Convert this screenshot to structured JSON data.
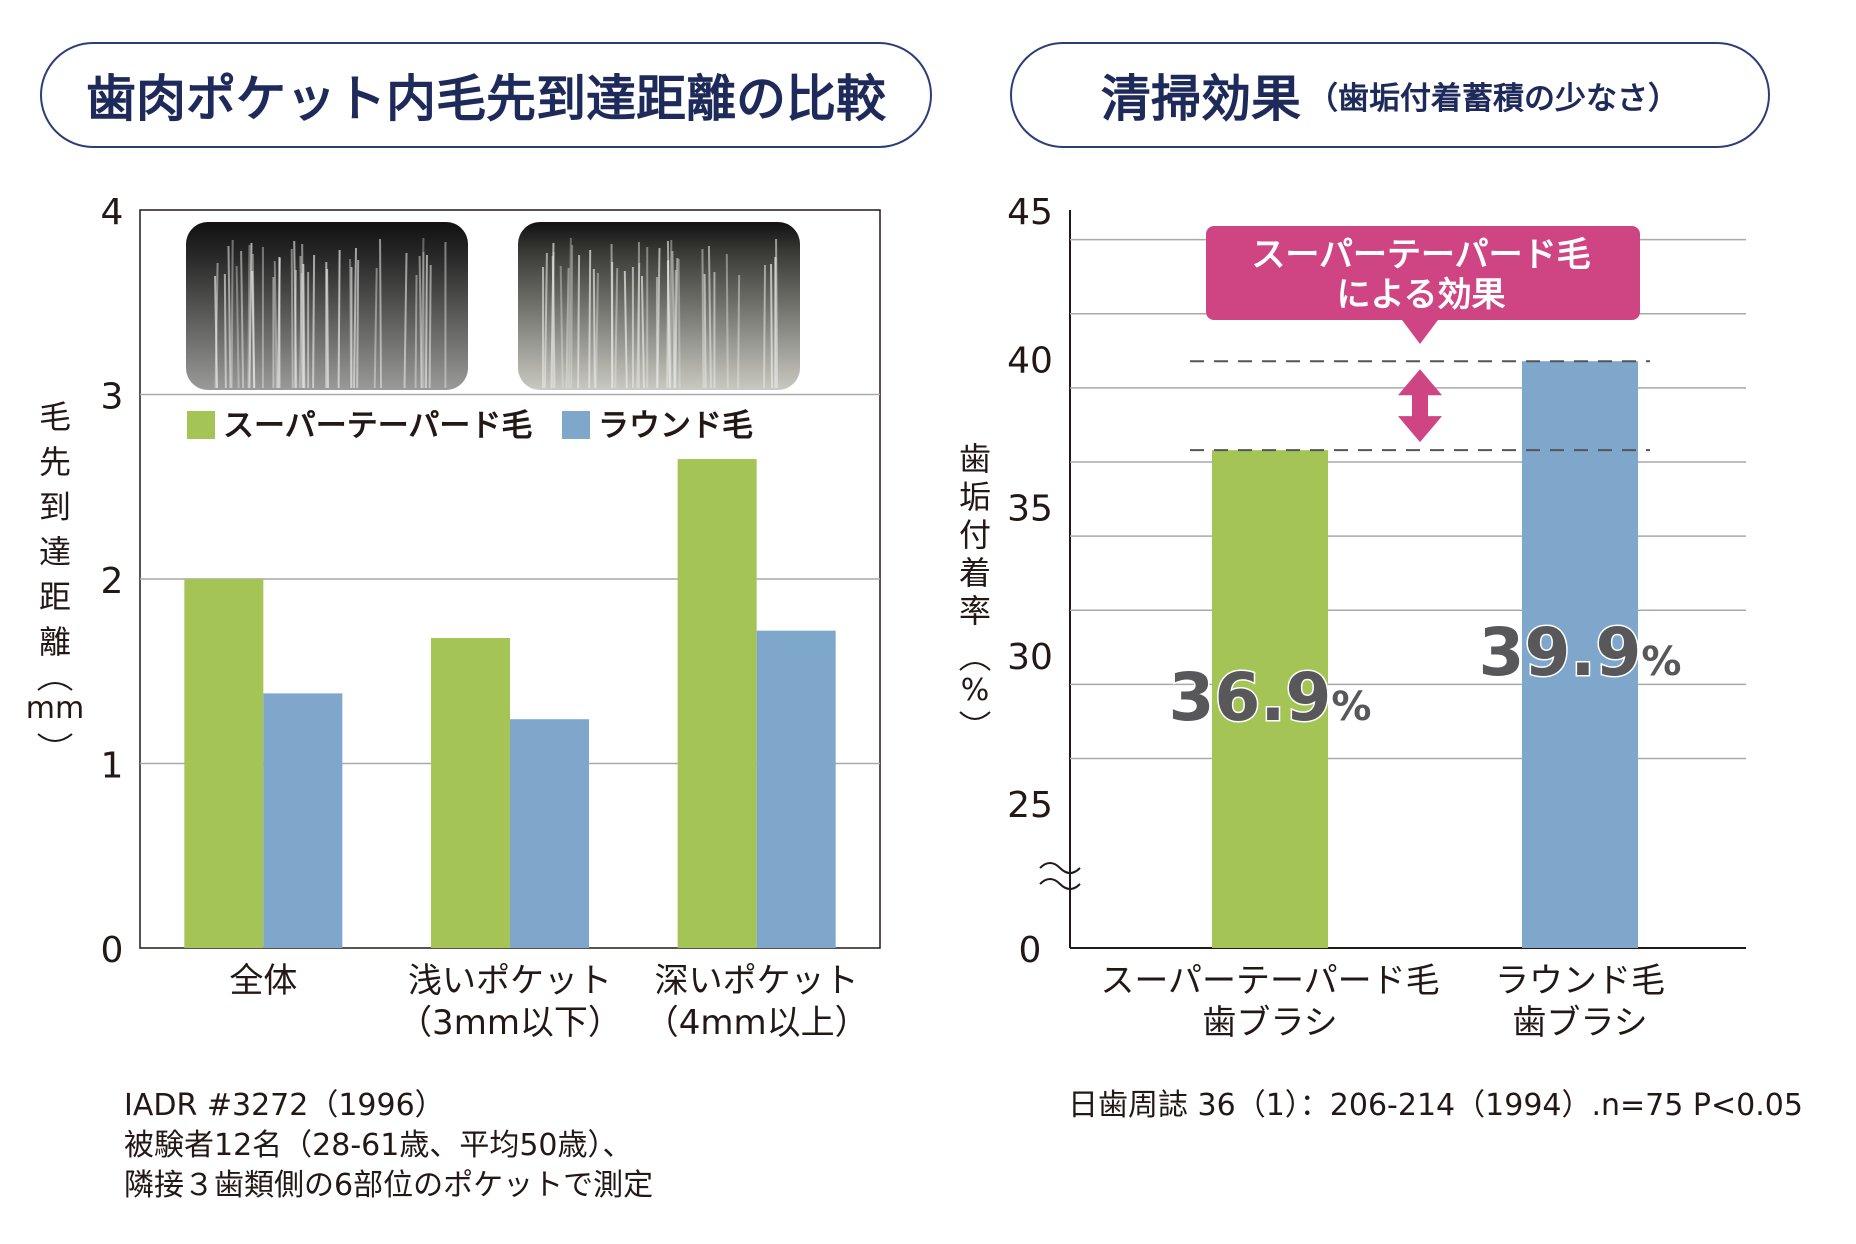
{
  "left_title": "歯肉ポケット内毛先到達距離の比較",
  "right_title": {
    "main": "清掃効果",
    "sub": "（歯垢付着蓄積の少なさ）"
  },
  "left_note_lines": [
    "IADR #3272（1996）",
    "被験者12名（28-61歳、平均50歳）、",
    "隣接３歯類側の6部位のポケットで測定"
  ],
  "right_note": "日歯周誌 36（1）：206-214（1994）.n=75 P<0.05",
  "colors": {
    "green": "#a5c456",
    "blue": "#7fa6cb",
    "pink": "#cf4584",
    "title_navy": "#1e2a5a"
  },
  "chart_data": [
    {
      "type": "bar",
      "ylabel": "毛先到達距離（mm）",
      "ylim": [
        0,
        4
      ],
      "yticks": [
        0,
        1,
        2,
        3,
        4
      ],
      "categories": [
        [
          "全体"
        ],
        [
          "浅いポケット",
          "（3mm以下）"
        ],
        [
          "深いポケット",
          "（4mm以上）"
        ]
      ],
      "series": [
        {
          "name": "スーパーテーパード毛",
          "color": "#a5c456",
          "values": [
            2.0,
            1.68,
            2.65
          ]
        },
        {
          "name": "ラウンド毛",
          "color": "#7fa6cb",
          "values": [
            1.38,
            1.24,
            1.72
          ]
        }
      ],
      "legend_position": "top",
      "photos": [
        "super-tapered-bristle-photo",
        "round-bristle-photo"
      ],
      "grid": true
    },
    {
      "type": "bar",
      "ylabel": "歯垢付着率（%）",
      "ylim": [
        0,
        45
      ],
      "axis_break": true,
      "yticks": [
        0,
        25,
        30,
        35,
        40,
        45
      ],
      "categories": [
        [
          "スーパーテーパード毛",
          "歯ブラシ"
        ],
        [
          "ラウンド毛",
          "歯ブラシ"
        ]
      ],
      "values": [
        36.9,
        39.9
      ],
      "colors": [
        "#a5c456",
        "#7fa6cb"
      ],
      "data_labels": [
        {
          "number": "36.9",
          "unit": "%"
        },
        {
          "number": "39.9",
          "unit": "%"
        }
      ],
      "callout": [
        "スーパーテーパード毛",
        "による効果"
      ],
      "grid": true
    }
  ]
}
